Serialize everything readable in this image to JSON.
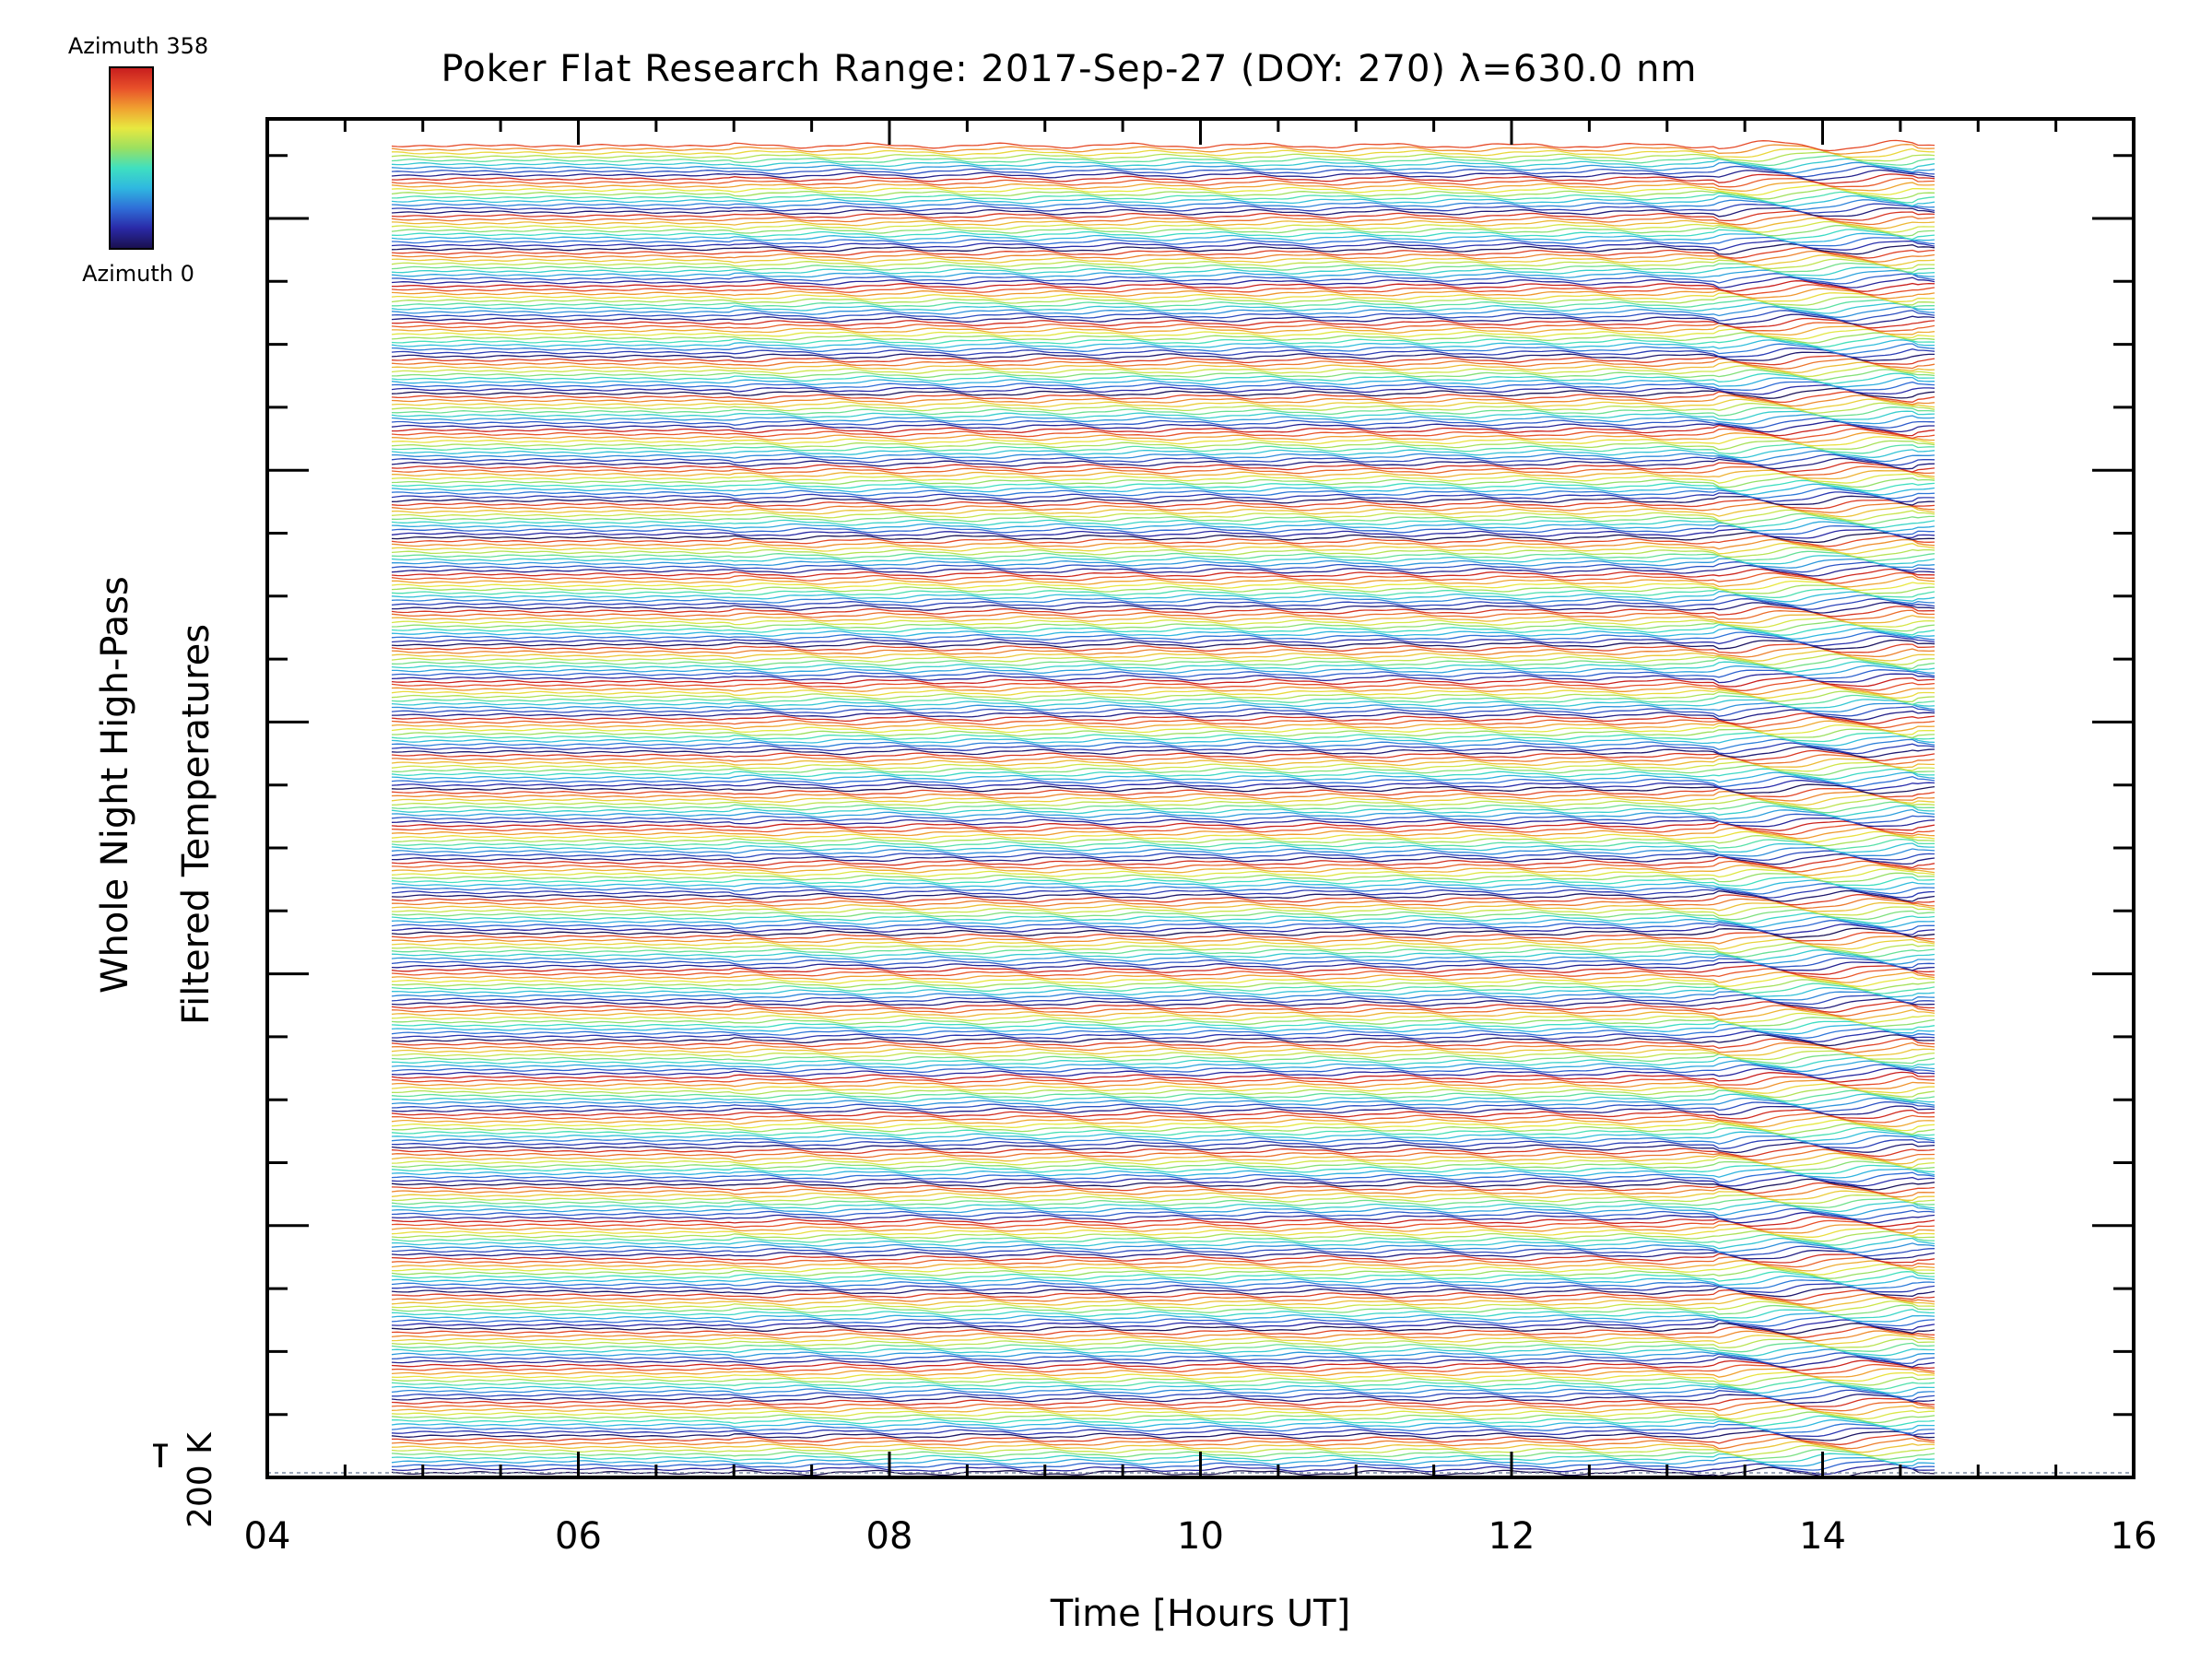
{
  "title": "Poker Flat Research Range: 2017-Sep-27 (DOY: 270) λ=630.0 nm",
  "colorbar": {
    "label_top": "Azimuth 358",
    "label_bottom": "Azimuth 0",
    "azimuth_min": 0,
    "azimuth_max": 358,
    "colors": [
      "#1a1050",
      "#2a2aa8",
      "#2f6fd8",
      "#2fb8e0",
      "#3fe0c0",
      "#9be060",
      "#e8e840",
      "#f0a030",
      "#e8502a",
      "#c81e1e"
    ]
  },
  "axes": {
    "xlabel": "Time [Hours UT]",
    "ylabel_line1": "Whole Night High-Pass",
    "ylabel_line2": "Filtered Temperatures",
    "scale_bar_label": "200 K",
    "x_ticks": [
      "04",
      "06",
      "08",
      "10",
      "12",
      "14",
      "16"
    ]
  },
  "chart_data": {
    "type": "line",
    "title": "Poker Flat Research Range: 2017-Sep-27 (DOY: 270) λ=630.0 nm",
    "xlabel": "Time [Hours UT]",
    "ylabel": "Whole Night High-Pass Filtered Temperatures",
    "xlim": [
      4,
      16
    ],
    "x_tick_values": [
      4,
      6,
      8,
      10,
      12,
      14,
      16
    ],
    "data_x_range": [
      4.8,
      14.75
    ],
    "scale_bar_K": 200,
    "series_count": 360,
    "series_variable": "azimuth",
    "series_range": [
      0,
      358
    ],
    "color_map": "rainbow (azimuth 0 = dark blue, azimuth 358 = red)",
    "stacking": "each azimuth trace offset vertically, azimuth 0 at bottom",
    "enhanced_variability_hours": [
      13.3,
      14.6
    ],
    "grid": false
  }
}
